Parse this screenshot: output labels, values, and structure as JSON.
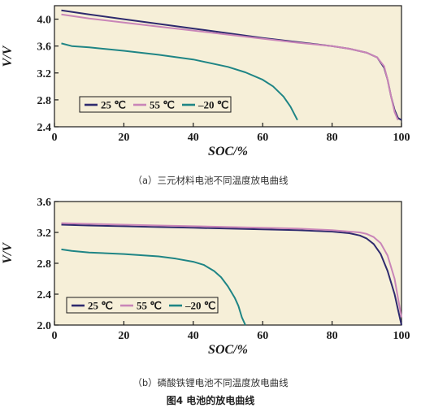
{
  "chart_data": [
    {
      "type": "line",
      "title": "",
      "xlabel": "SOC/%",
      "ylabel": "V/V",
      "xlim": [
        0,
        100
      ],
      "ylim": [
        2.4,
        4.2
      ],
      "xticks": [
        "0",
        "20",
        "40",
        "60",
        "80",
        "100"
      ],
      "yticks": [
        "2.4",
        "2.8",
        "3.2",
        "3.6",
        "4.0"
      ],
      "grid": false,
      "legend": "bottom-left, boxed",
      "background": "#f6efd8",
      "series": [
        {
          "name": "25 ℃",
          "color": "#2e2a6e",
          "x": [
            2,
            10,
            20,
            30,
            40,
            50,
            60,
            70,
            80,
            85,
            90,
            93,
            95,
            96,
            97,
            98,
            99,
            100
          ],
          "y": [
            4.13,
            4.07,
            4.0,
            3.93,
            3.86,
            3.79,
            3.72,
            3.66,
            3.6,
            3.56,
            3.5,
            3.43,
            3.28,
            3.1,
            2.85,
            2.65,
            2.53,
            2.5
          ]
        },
        {
          "name": "55 ℃",
          "color": "#c985b8",
          "x": [
            2,
            10,
            20,
            30,
            40,
            50,
            60,
            70,
            80,
            85,
            90,
            93,
            95,
            96,
            97,
            98,
            99
          ],
          "y": [
            4.07,
            4.01,
            3.95,
            3.89,
            3.83,
            3.77,
            3.71,
            3.65,
            3.6,
            3.56,
            3.5,
            3.43,
            3.3,
            3.1,
            2.85,
            2.62,
            2.5
          ]
        },
        {
          "name": "–20 ℃",
          "color": "#1f8585",
          "x": [
            2,
            5,
            10,
            20,
            30,
            40,
            50,
            55,
            60,
            63,
            66,
            68,
            70
          ],
          "y": [
            3.64,
            3.6,
            3.58,
            3.53,
            3.47,
            3.4,
            3.29,
            3.21,
            3.1,
            3.0,
            2.85,
            2.7,
            2.5
          ]
        }
      ]
    },
    {
      "type": "line",
      "title": "",
      "xlabel": "SOC/%",
      "ylabel": "V/V",
      "xlim": [
        0,
        100
      ],
      "ylim": [
        2.0,
        3.6
      ],
      "xticks": [
        "0",
        "20",
        "40",
        "60",
        "80",
        "100"
      ],
      "yticks": [
        "2.0",
        "2.4",
        "2.8",
        "3.2",
        "3.6"
      ],
      "grid": false,
      "legend": "bottom-left, boxed",
      "background": "#f6efd8",
      "series": [
        {
          "name": "25 ℃",
          "color": "#2e2a6e",
          "x": [
            2,
            10,
            20,
            30,
            40,
            50,
            60,
            70,
            80,
            85,
            88,
            90,
            92,
            94,
            96,
            98,
            99,
            100
          ],
          "y": [
            3.3,
            3.29,
            3.28,
            3.27,
            3.26,
            3.25,
            3.24,
            3.23,
            3.21,
            3.19,
            3.16,
            3.12,
            3.05,
            2.92,
            2.7,
            2.4,
            2.2,
            2.0
          ]
        },
        {
          "name": "55 ℃",
          "color": "#c985b8",
          "x": [
            2,
            10,
            20,
            30,
            40,
            50,
            60,
            70,
            80,
            85,
            88,
            90,
            92,
            94,
            96,
            98,
            99,
            100
          ],
          "y": [
            3.32,
            3.31,
            3.3,
            3.29,
            3.28,
            3.27,
            3.26,
            3.25,
            3.23,
            3.21,
            3.2,
            3.18,
            3.14,
            3.06,
            2.9,
            2.6,
            2.35,
            2.1
          ]
        },
        {
          "name": "–20 ℃",
          "color": "#1f8585",
          "x": [
            2,
            5,
            10,
            20,
            30,
            35,
            40,
            43,
            46,
            48,
            50,
            52,
            53,
            54,
            55
          ],
          "y": [
            2.98,
            2.96,
            2.94,
            2.92,
            2.89,
            2.86,
            2.82,
            2.78,
            2.7,
            2.62,
            2.5,
            2.35,
            2.25,
            2.1,
            2.0
          ]
        }
      ]
    }
  ],
  "captions": {
    "a": "（a）三元材料电池不同温度放电曲线",
    "b": "（b）磷酸铁锂电池不同温度放电曲线",
    "figure": "图4 电池的放电曲线"
  }
}
